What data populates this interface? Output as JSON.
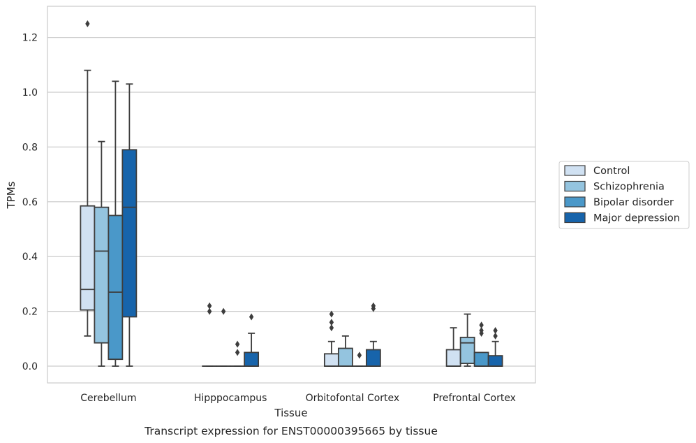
{
  "chart_data": {
    "type": "box",
    "caption": "Transcript expression for ENST00000395665 by tissue",
    "xlabel": "Tissue",
    "ylabel": "TPMs",
    "ylim": [
      -0.06,
      1.32
    ],
    "yticks": [
      0.0,
      0.2,
      0.4,
      0.6,
      0.8,
      1.0,
      1.2
    ],
    "ytick_labels": [
      "0.0",
      "0.2",
      "0.4",
      "0.6",
      "0.8",
      "1.0",
      "1.2"
    ],
    "grid": "horizontal",
    "legend_position": "right",
    "categories": [
      "Cerebellum",
      "Hipppocampus",
      "Orbitofontal Cortex",
      "Prefrontal Cortex"
    ],
    "series": [
      {
        "name": "Control",
        "color": "#d0e1f2",
        "boxes": [
          {
            "whislo": 0.11,
            "q1": 0.205,
            "med": 0.28,
            "q3": 0.585,
            "whishi": 1.08,
            "fliers": [
              1.25
            ]
          },
          {
            "whislo": 0.0,
            "q1": 0.0,
            "med": 0.0,
            "q3": 0.0,
            "whishi": 0.0,
            "fliers": [
              0.2,
              0.22
            ]
          },
          {
            "whislo": 0.0,
            "q1": 0.0,
            "med": 0.0,
            "q3": 0.045,
            "whishi": 0.09,
            "fliers": [
              0.14,
              0.16,
              0.19
            ]
          },
          {
            "whislo": 0.0,
            "q1": 0.0,
            "med": 0.0,
            "q3": 0.06,
            "whishi": 0.14,
            "fliers": []
          }
        ]
      },
      {
        "name": "Schizophrenia",
        "color": "#94c4df",
        "boxes": [
          {
            "whislo": 0.0,
            "q1": 0.085,
            "med": 0.42,
            "q3": 0.58,
            "whishi": 0.82,
            "fliers": []
          },
          {
            "whislo": 0.0,
            "q1": 0.0,
            "med": 0.0,
            "q3": 0.0,
            "whishi": 0.0,
            "fliers": [
              0.2
            ]
          },
          {
            "whislo": 0.0,
            "q1": 0.0,
            "med": 0.0,
            "q3": 0.065,
            "whishi": 0.11,
            "fliers": []
          },
          {
            "whislo": 0.0,
            "q1": 0.01,
            "med": 0.085,
            "q3": 0.105,
            "whishi": 0.19,
            "fliers": []
          }
        ]
      },
      {
        "name": "Bipolar disorder",
        "color": "#4a98c9",
        "boxes": [
          {
            "whislo": 0.0,
            "q1": 0.025,
            "med": 0.27,
            "q3": 0.55,
            "whishi": 1.04,
            "fliers": []
          },
          {
            "whislo": 0.0,
            "q1": 0.0,
            "med": 0.0,
            "q3": 0.0,
            "whishi": 0.0,
            "fliers": [
              0.05,
              0.08
            ]
          },
          {
            "whislo": 0.0,
            "q1": 0.0,
            "med": 0.0,
            "q3": 0.0,
            "whishi": 0.0,
            "fliers": [
              0.04
            ]
          },
          {
            "whislo": 0.0,
            "q1": 0.0,
            "med": 0.0,
            "q3": 0.05,
            "whishi": 0.05,
            "fliers": [
              0.12,
              0.13,
              0.15
            ]
          }
        ]
      },
      {
        "name": "Major depression",
        "color": "#1764ab",
        "boxes": [
          {
            "whislo": 0.0,
            "q1": 0.18,
            "med": 0.58,
            "q3": 0.79,
            "whishi": 1.03,
            "fliers": []
          },
          {
            "whislo": 0.0,
            "q1": 0.0,
            "med": 0.0,
            "q3": 0.05,
            "whishi": 0.12,
            "fliers": [
              0.18
            ]
          },
          {
            "whislo": 0.0,
            "q1": 0.0,
            "med": 0.0,
            "q3": 0.06,
            "whishi": 0.09,
            "fliers": [
              0.21,
              0.22
            ]
          },
          {
            "whislo": 0.0,
            "q1": 0.0,
            "med": 0.0,
            "q3": 0.038,
            "whishi": 0.09,
            "fliers": [
              0.11,
              0.13
            ]
          }
        ]
      }
    ]
  }
}
